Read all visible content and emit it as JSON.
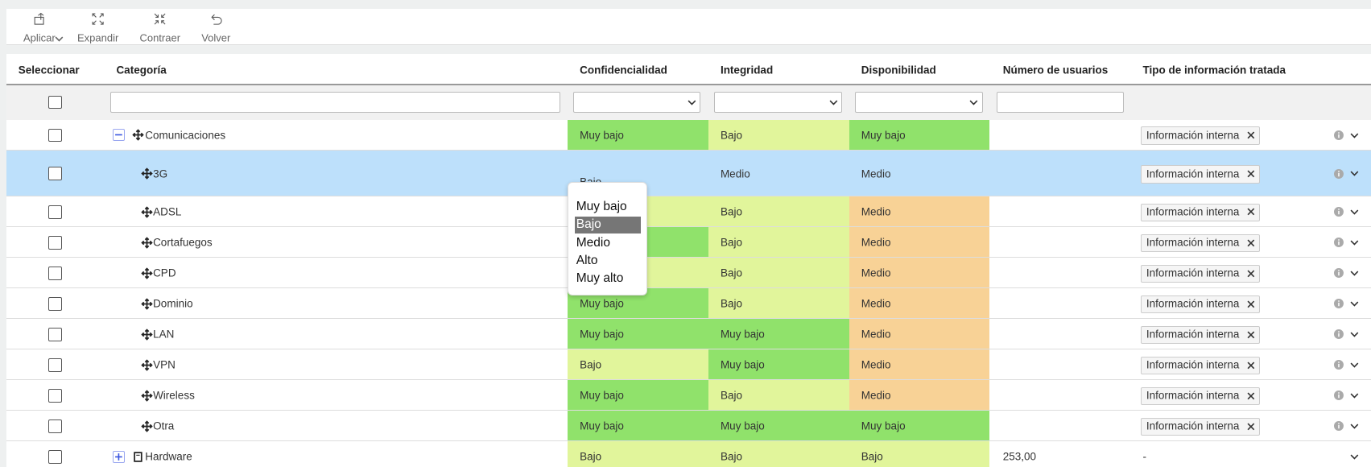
{
  "toolbar": [
    {
      "label": "Aplicar"
    },
    {
      "label": "Expandir"
    },
    {
      "label": "Contraer"
    },
    {
      "label": "Volver"
    }
  ],
  "columns": [
    "Seleccionar",
    "Categoría",
    "Confidencialidad",
    "Integridad",
    "Disponibilidad",
    "Número de usuarios",
    "Tipo de información tratada"
  ],
  "level_colors": {
    "Muy bajo": "#90e26b",
    "Bajo": "#e1f59b",
    "Medio": "#f8d296"
  },
  "rows": [
    {
      "category": "Comunicaciones",
      "group": true,
      "expanded": true,
      "confidencialidad": "Muy bajo",
      "integridad": "Bajo",
      "disponibilidad": "Muy bajo",
      "tipo": "Información interna"
    },
    {
      "category": "3G",
      "selected": true,
      "confidencialidad": "Bajo",
      "integridad": "Medio",
      "disponibilidad": "Medio",
      "tipo": "Información interna"
    },
    {
      "category": "ADSL",
      "confidencialidad": "Bajo",
      "integridad": "Bajo",
      "disponibilidad": "Medio",
      "tipo": "Información interna"
    },
    {
      "category": "Cortafuegos",
      "confidencialidad": "Muy bajo",
      "integridad": "Bajo",
      "disponibilidad": "Medio",
      "tipo": "Información interna"
    },
    {
      "category": "CPD",
      "confidencialidad": "Bajo",
      "integridad": "Bajo",
      "disponibilidad": "Medio",
      "tipo": "Información interna"
    },
    {
      "category": "Dominio",
      "confidencialidad": "Muy bajo",
      "integridad": "Bajo",
      "disponibilidad": "Medio",
      "tipo": "Información interna"
    },
    {
      "category": "LAN",
      "confidencialidad": "Muy bajo",
      "integridad": "Muy bajo",
      "disponibilidad": "Medio",
      "tipo": "Información interna"
    },
    {
      "category": "VPN",
      "confidencialidad": "Bajo",
      "integridad": "Muy bajo",
      "disponibilidad": "Medio",
      "tipo": "Información interna"
    },
    {
      "category": "Wireless",
      "confidencialidad": "Muy bajo",
      "integridad": "Bajo",
      "disponibilidad": "Medio",
      "tipo": "Información interna"
    },
    {
      "category": "Otra",
      "confidencialidad": "Muy bajo",
      "integridad": "Muy bajo",
      "disponibilidad": "Muy bajo",
      "tipo": "Información interna"
    },
    {
      "category": "Hardware",
      "group": true,
      "expanded": false,
      "confidencialidad": "Bajo",
      "integridad": "Bajo",
      "disponibilidad": "Bajo",
      "usuarios": "253,00",
      "tipo": "-"
    }
  ],
  "dropdown": {
    "options": [
      "Muy bajo",
      "Bajo",
      "Medio",
      "Alto",
      "Muy alto"
    ],
    "highlighted": 1
  }
}
